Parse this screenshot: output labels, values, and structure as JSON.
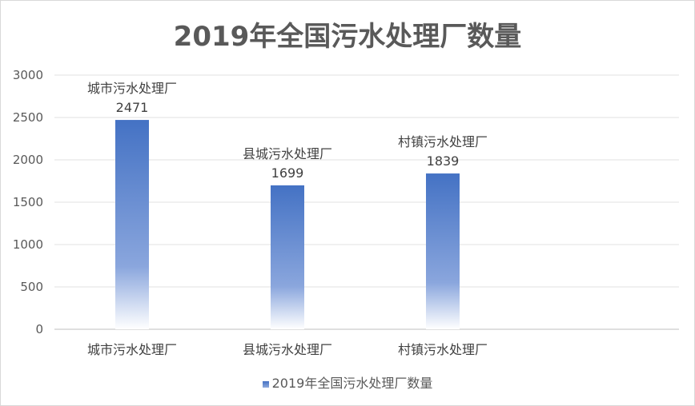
{
  "chart_data": {
    "type": "bar",
    "title": "2019年全国污水处理厂数量",
    "categories": [
      "城市污水处理厂",
      "县城污水处理厂",
      "村镇污水处理厂"
    ],
    "series": [
      {
        "name": "2019年全国污水处理厂数量",
        "values": [
          2471,
          1699,
          1839
        ],
        "data_labels": [
          "城市污水处理厂\n2471",
          "县城污水处理厂\n1699",
          "村镇污水处理厂\n1839"
        ]
      }
    ],
    "ylim": [
      0,
      3000
    ],
    "yticks": [
      "0",
      "500",
      "1000",
      "1500",
      "2000",
      "2500",
      "3000"
    ],
    "grid": true,
    "legend": "bottom",
    "colors": {
      "bar_top": "#4472c4",
      "bar_bottom": "#ffffff"
    }
  }
}
